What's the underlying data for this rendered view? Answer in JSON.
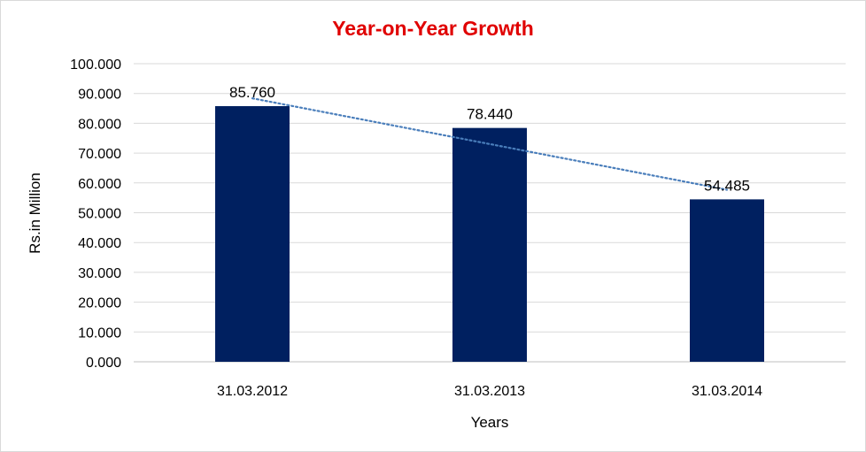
{
  "chart_data": {
    "type": "bar",
    "title": "Year-on-Year Growth",
    "xlabel": "Years",
    "ylabel": "Rs.in Million",
    "categories": [
      "31.03.2012",
      "31.03.2013",
      "31.03.2014"
    ],
    "values": [
      85.76,
      78.44,
      54.485
    ],
    "value_labels": [
      "85.760",
      "78.440",
      "54.485"
    ],
    "y_ticks": [
      "0.000",
      "10.000",
      "20.000",
      "30.000",
      "40.000",
      "50.000",
      "60.000",
      "70.000",
      "80.000",
      "90.000",
      "100.000"
    ],
    "ylim": [
      0,
      100
    ],
    "grid": true,
    "legend": "none",
    "trendline": {
      "type": "linear",
      "style": "dotted",
      "start": 88.385,
      "end": 57.705
    },
    "colors": {
      "bar": "#002060",
      "title": "#e00000",
      "trendline": "#4a7ebb",
      "gridline": "#d9d9d9"
    }
  }
}
